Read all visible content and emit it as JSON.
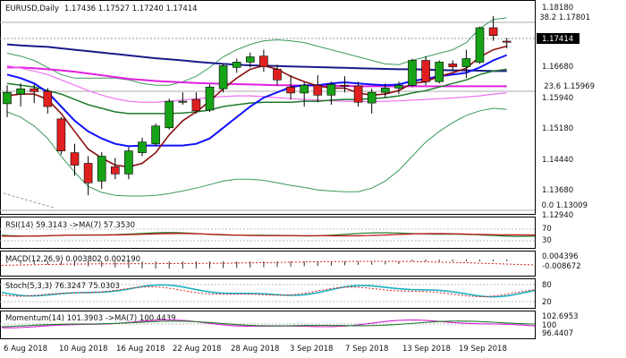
{
  "window": {
    "symbol": "EURUSD",
    "timeframe": "Daily",
    "ohlc": "1.17436 1.17527 1.17240 1.17414"
  },
  "price_axis": {
    "ticks": [
      "1.18180",
      "1.16680",
      "1.15940",
      "1.15180",
      "1.14440",
      "1.13680",
      "1.12940"
    ],
    "current_price": "1.17414"
  },
  "fib_levels": [
    {
      "label": "38.2 1.17801",
      "value": 1.17801
    },
    {
      "label": "23.6 1.15969",
      "value": 1.15969
    },
    {
      "label": "0.0 1.13009",
      "value": 1.13009
    }
  ],
  "date_axis": {
    "labels": [
      "6 Aug 2018",
      "10 Aug 2018",
      "16 Aug 2018",
      "22 Aug 2018",
      "28 Aug 2018",
      "3 Sep 2018",
      "7 Sep 2018",
      "13 Sep 2018",
      "19 Sep 2018"
    ]
  },
  "indicators": {
    "rsi": {
      "label": "RSI(14) 59.3143 ->MA(7) 57.3530",
      "ticks": [
        "70",
        "30"
      ]
    },
    "macd": {
      "label": "MACD(12,26,9) 0.003802 0.002190",
      "ticks": [
        "0.004396",
        "-0.008672"
      ]
    },
    "stoch": {
      "label": "Stoch(5,3,3) 76.3247 75.0303",
      "ticks": [
        "80",
        "20"
      ]
    },
    "momentum": {
      "label": "Momentum(14) 101.3903 ->MA(7) 100.4439",
      "ticks": [
        "102.6953",
        "100",
        "96.4407"
      ]
    }
  },
  "colors": {
    "bull": "#17a317",
    "bear": "#e02020",
    "ma_blue": "#0a0aa0",
    "ma_navy": "#1a1a8a",
    "ma_darkred": "#8b1010",
    "ma_green": "#1f7a2a",
    "ma_magenta": "#e020e0",
    "bollinger": "#3a9a5a",
    "grid": "#888888"
  },
  "chart_data": {
    "type": "candlestick",
    "ylim": [
      1.126,
      1.185
    ],
    "candles": [
      {
        "o": 1.1568,
        "h": 1.162,
        "l": 1.153,
        "c": 1.16
      },
      {
        "o": 1.1595,
        "h": 1.1625,
        "l": 1.156,
        "c": 1.161
      },
      {
        "o": 1.161,
        "h": 1.1622,
        "l": 1.157,
        "c": 1.1602
      },
      {
        "o": 1.1603,
        "h": 1.1612,
        "l": 1.154,
        "c": 1.156
      },
      {
        "o": 1.1525,
        "h": 1.153,
        "l": 1.1425,
        "c": 1.1435
      },
      {
        "o": 1.143,
        "h": 1.1455,
        "l": 1.1365,
        "c": 1.1395
      },
      {
        "o": 1.14,
        "h": 1.142,
        "l": 1.131,
        "c": 1.1345
      },
      {
        "o": 1.135,
        "h": 1.1432,
        "l": 1.1328,
        "c": 1.142
      },
      {
        "o": 1.139,
        "h": 1.1415,
        "l": 1.1355,
        "c": 1.137
      },
      {
        "o": 1.137,
        "h": 1.1445,
        "l": 1.1355,
        "c": 1.1435
      },
      {
        "o": 1.143,
        "h": 1.1472,
        "l": 1.142,
        "c": 1.146
      },
      {
        "o": 1.1455,
        "h": 1.1512,
        "l": 1.1448,
        "c": 1.1505
      },
      {
        "o": 1.15,
        "h": 1.1582,
        "l": 1.1495,
        "c": 1.1575
      },
      {
        "o": 1.1572,
        "h": 1.16,
        "l": 1.1565,
        "c": 1.1575
      },
      {
        "o": 1.158,
        "h": 1.16,
        "l": 1.154,
        "c": 1.1548
      },
      {
        "o": 1.155,
        "h": 1.1622,
        "l": 1.1545,
        "c": 1.1615
      },
      {
        "o": 1.161,
        "h": 1.168,
        "l": 1.16,
        "c": 1.1675
      },
      {
        "o": 1.167,
        "h": 1.1695,
        "l": 1.1655,
        "c": 1.1685
      },
      {
        "o": 1.1685,
        "h": 1.1712,
        "l": 1.167,
        "c": 1.17
      },
      {
        "o": 1.1702,
        "h": 1.172,
        "l": 1.1658,
        "c": 1.1672
      },
      {
        "o": 1.1665,
        "h": 1.1678,
        "l": 1.162,
        "c": 1.1635
      },
      {
        "o": 1.1615,
        "h": 1.1648,
        "l": 1.158,
        "c": 1.1598
      },
      {
        "o": 1.1598,
        "h": 1.1628,
        "l": 1.156,
        "c": 1.162
      },
      {
        "o": 1.162,
        "h": 1.1648,
        "l": 1.1572,
        "c": 1.1592
      },
      {
        "o": 1.1592,
        "h": 1.163,
        "l": 1.1565,
        "c": 1.1622
      },
      {
        "o": 1.162,
        "h": 1.1645,
        "l": 1.16,
        "c": 1.1618
      },
      {
        "o": 1.1618,
        "h": 1.163,
        "l": 1.156,
        "c": 1.1572
      },
      {
        "o": 1.157,
        "h": 1.161,
        "l": 1.154,
        "c": 1.16
      },
      {
        "o": 1.16,
        "h": 1.1625,
        "l": 1.1585,
        "c": 1.1612
      },
      {
        "o": 1.1612,
        "h": 1.163,
        "l": 1.1595,
        "c": 1.162
      },
      {
        "o": 1.162,
        "h": 1.1695,
        "l": 1.1615,
        "c": 1.169
      },
      {
        "o": 1.169,
        "h": 1.1702,
        "l": 1.162,
        "c": 1.163
      },
      {
        "o": 1.163,
        "h": 1.169,
        "l": 1.1625,
        "c": 1.1685
      },
      {
        "o": 1.168,
        "h": 1.169,
        "l": 1.166,
        "c": 1.1672
      },
      {
        "o": 1.1672,
        "h": 1.172,
        "l": 1.164,
        "c": 1.1695
      },
      {
        "o": 1.1685,
        "h": 1.1785,
        "l": 1.168,
        "c": 1.1782
      },
      {
        "o": 1.1782,
        "h": 1.1815,
        "l": 1.1745,
        "c": 1.176
      },
      {
        "o": 1.1744,
        "h": 1.1753,
        "l": 1.1724,
        "c": 1.1741
      }
    ],
    "lines": {
      "ma_blue": [
        1.165,
        1.164,
        1.1625,
        1.16,
        1.156,
        1.152,
        1.149,
        1.147,
        1.1455,
        1.1448,
        1.145,
        1.145,
        1.145,
        1.145,
        1.1455,
        1.147,
        1.15,
        1.153,
        1.156,
        1.1585,
        1.16,
        1.1615,
        1.162,
        1.162,
        1.1625,
        1.1628,
        1.1625,
        1.1622,
        1.162,
        1.1622,
        1.1632,
        1.1638,
        1.1645,
        1.165,
        1.1655,
        1.167,
        1.169,
        1.1705
      ],
      "ma_navy": [
        1.1735,
        1.1732,
        1.173,
        1.1728,
        1.1724,
        1.172,
        1.1716,
        1.1712,
        1.1708,
        1.1704,
        1.17,
        1.1696,
        1.1693,
        1.169,
        1.1686,
        1.1683,
        1.168,
        1.1678,
        1.1676,
        1.1675,
        1.1674,
        1.1673,
        1.1672,
        1.1671,
        1.167,
        1.1669,
        1.1668,
        1.1667,
        1.1666,
        1.1665,
        1.1665,
        1.1664,
        1.1663,
        1.1662,
        1.1662,
        1.1661,
        1.166,
        1.166
      ],
      "ma_darkred": [
        1.159,
        1.1595,
        1.1595,
        1.158,
        1.154,
        1.149,
        1.144,
        1.1415,
        1.1395,
        1.139,
        1.14,
        1.143,
        1.148,
        1.152,
        1.1545,
        1.1575,
        1.161,
        1.164,
        1.1665,
        1.1675,
        1.1665,
        1.1645,
        1.163,
        1.1618,
        1.1612,
        1.1612,
        1.1598,
        1.1592,
        1.1595,
        1.1605,
        1.1625,
        1.163,
        1.1645,
        1.1655,
        1.1668,
        1.17,
        1.172,
        1.173
      ],
      "ma_green": [
        1.1625,
        1.162,
        1.1615,
        1.1605,
        1.1595,
        1.158,
        1.1565,
        1.1555,
        1.1545,
        1.154,
        1.154,
        1.154,
        1.154,
        1.1542,
        1.1545,
        1.155,
        1.156,
        1.1565,
        1.157,
        1.1572,
        1.1572,
        1.1572,
        1.1575,
        1.1575,
        1.1578,
        1.158,
        1.158,
        1.1582,
        1.1585,
        1.159,
        1.1598,
        1.1605,
        1.1615,
        1.1625,
        1.1635,
        1.165,
        1.166,
        1.1665
      ],
      "ma_magenta": [
        1.167,
        1.167,
        1.1668,
        1.1665,
        1.1662,
        1.1658,
        1.1653,
        1.1648,
        1.1643,
        1.1638,
        1.1635,
        1.1632,
        1.163,
        1.1628,
        1.1626,
        1.1625,
        1.1624,
        1.1623,
        1.1622,
        1.1621,
        1.162,
        1.162,
        1.1619,
        1.1619,
        1.1618,
        1.1618,
        1.1617,
        1.1617,
        1.1617,
        1.1617,
        1.1617,
        1.1617,
        1.1617,
        1.1617,
        1.1617,
        1.1617,
        1.1617,
        1.1617
      ],
      "ma_pink": [
        1.1675,
        1.1668,
        1.166,
        1.165,
        1.1635,
        1.162,
        1.1605,
        1.1592,
        1.1582,
        1.1575,
        1.1572,
        1.1572,
        1.1575,
        1.1578,
        1.1582,
        1.1585,
        1.1588,
        1.159,
        1.159,
        1.1588,
        1.1585,
        1.1582,
        1.158,
        1.1578,
        1.1576,
        1.1575,
        1.1574,
        1.1574,
        1.1575,
        1.1576,
        1.1578,
        1.158,
        1.1582,
        1.1584,
        1.1587,
        1.159,
        1.1595,
        1.1598
      ],
      "bb_upper": [
        1.171,
        1.1702,
        1.169,
        1.167,
        1.165,
        1.164,
        1.164,
        1.164,
        1.164,
        1.1635,
        1.1625,
        1.162,
        1.162,
        1.163,
        1.1645,
        1.167,
        1.17,
        1.172,
        1.1735,
        1.1745,
        1.1748,
        1.1745,
        1.174,
        1.173,
        1.172,
        1.171,
        1.17,
        1.169,
        1.168,
        1.1678,
        1.169,
        1.17,
        1.171,
        1.172,
        1.174,
        1.178,
        1.1805,
        1.181
      ],
      "bb_lower": [
        1.1545,
        1.153,
        1.1505,
        1.147,
        1.142,
        1.1375,
        1.1335,
        1.1318,
        1.131,
        1.1308,
        1.1308,
        1.131,
        1.1315,
        1.1322,
        1.133,
        1.134,
        1.135,
        1.1355,
        1.1355,
        1.1352,
        1.1345,
        1.1338,
        1.1332,
        1.1325,
        1.1322,
        1.132,
        1.132,
        1.133,
        1.135,
        1.138,
        1.142,
        1.146,
        1.149,
        1.1515,
        1.1535,
        1.1548,
        1.1555,
        1.1552
      ]
    },
    "rsi": {
      "value": 59.3143,
      "ma": 57.353
    },
    "macd": {
      "main": 0.003802,
      "signal": 0.00219
    },
    "stoch": {
      "k": 76.3247,
      "d": 75.0303
    },
    "momentum": {
      "value": 101.3903,
      "ma": 100.4439
    }
  }
}
